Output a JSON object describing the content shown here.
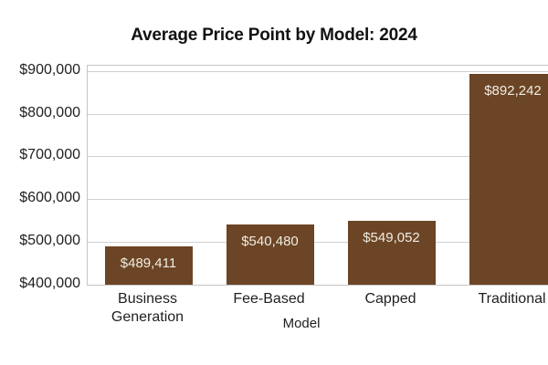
{
  "chart_data": {
    "type": "bar",
    "title": "Average Price Point by Model: 2024",
    "categories": [
      "Business Generation",
      "Fee-Based",
      "Capped",
      "Traditional"
    ],
    "values": [
      489411,
      540480,
      549052,
      892242
    ],
    "value_labels": [
      "$489,411",
      "$540,480",
      "$549,052",
      "$892,242"
    ],
    "xlabel": "Model",
    "ylabel": "",
    "ylim": [
      400000,
      912000
    ],
    "yticks": [
      400000,
      500000,
      600000,
      700000,
      800000,
      900000
    ],
    "ytick_labels": [
      "$400,000",
      "$500,000",
      "$600,000",
      "$700,000",
      "$800,000",
      "$900,000"
    ],
    "grid": true,
    "legend": false,
    "bar_color": "#6B4526",
    "value_label_color": "#F2ECE1",
    "gridline_color": "#d0d0d0",
    "title_color": "#111111"
  }
}
